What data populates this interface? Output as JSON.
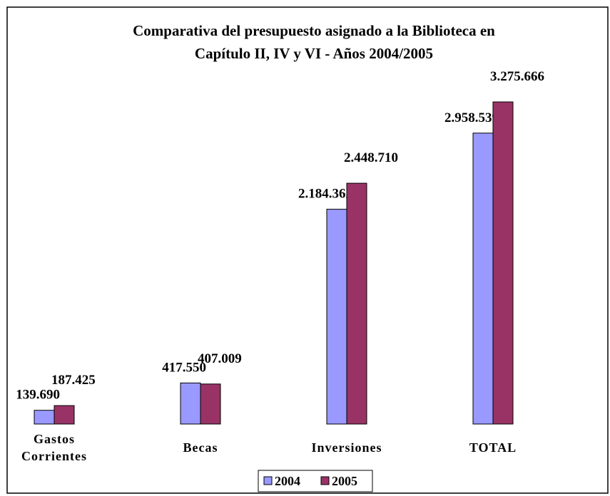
{
  "chart_data": {
    "type": "bar",
    "title": "Comparativa del presupuesto asignado a la Biblioteca en",
    "subtitle": "Capítulo II, IV y VI - Años 2004/2005",
    "categories": [
      "Gastos Corrientes",
      "Becas",
      "Inversiones",
      "TOTAL"
    ],
    "series": [
      {
        "name": "2004",
        "color": "#9999ff",
        "values": [
          139690,
          417550,
          2184362,
          2958539
        ],
        "value_labels": [
          "139.690",
          "417.550",
          "2.184.362",
          "2.958.539"
        ]
      },
      {
        "name": "2005",
        "color": "#993366",
        "values": [
          187425,
          407009,
          2448710,
          3275666
        ],
        "value_labels": [
          "187.425",
          "407.009",
          "2.448.710",
          "3.275.666"
        ]
      }
    ]
  }
}
